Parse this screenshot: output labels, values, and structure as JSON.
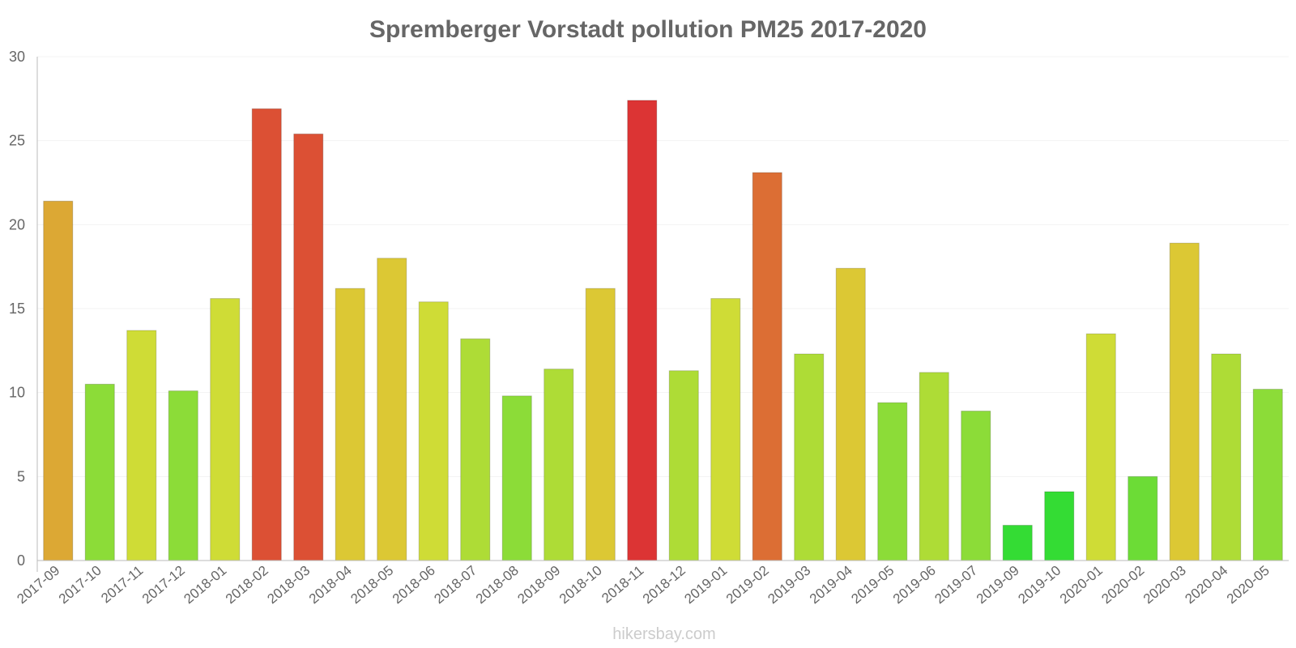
{
  "chart_data": {
    "type": "bar",
    "title": "Spremberger Vorstadt pollution PM25 2017-2020",
    "xlabel": "",
    "ylabel": "",
    "ylim": [
      0,
      30
    ],
    "yticks": [
      0,
      5,
      10,
      15,
      20,
      25,
      30
    ],
    "grid": true,
    "categories": [
      "2017-09",
      "2017-10",
      "2017-11",
      "2017-12",
      "2018-01",
      "2018-02",
      "2018-03",
      "2018-04",
      "2018-05",
      "2018-06",
      "2018-07",
      "2018-08",
      "2018-09",
      "2018-10",
      "2018-11",
      "2018-12",
      "2019-01",
      "2019-02",
      "2019-03",
      "2019-04",
      "2019-05",
      "2019-06",
      "2019-07",
      "2019-09",
      "2019-10",
      "2020-01",
      "2020-02",
      "2020-03",
      "2020-04",
      "2020-05"
    ],
    "values": [
      21.4,
      10.5,
      13.7,
      10.1,
      15.6,
      26.9,
      25.4,
      16.2,
      18.0,
      15.4,
      13.2,
      9.8,
      11.4,
      16.2,
      27.4,
      11.3,
      15.6,
      23.1,
      12.3,
      17.4,
      9.4,
      11.2,
      8.9,
      2.1,
      4.1,
      13.5,
      5.0,
      18.9,
      12.3,
      10.2
    ],
    "colors": [
      "#dca834",
      "#8cdc38",
      "#cfdc36",
      "#8cdc38",
      "#cfdc36",
      "#dc5034",
      "#dc5034",
      "#dcc834",
      "#dcc834",
      "#cfdc36",
      "#aedc36",
      "#8cdc38",
      "#aedc36",
      "#dcc834",
      "#dc3434",
      "#aedc36",
      "#cfdc36",
      "#dc6e34",
      "#aedc36",
      "#dcc834",
      "#8cdc38",
      "#aedc36",
      "#8cdc38",
      "#34dc34",
      "#34dc34",
      "#cfdc36",
      "#6cdc36",
      "#dcc834",
      "#aedc36",
      "#8cdc38"
    ]
  },
  "watermark": "hikersbay.com"
}
